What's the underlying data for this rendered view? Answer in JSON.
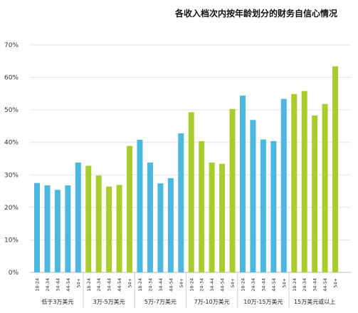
{
  "chart_data": {
    "type": "bar",
    "title": "各收入档次内按年龄划分的财务自信心情况",
    "ylim": [
      0,
      70
    ],
    "yticks": [
      "0%",
      "10%",
      "20%",
      "30%",
      "40%",
      "50%",
      "60%",
      "70%"
    ],
    "grid": true,
    "groups": [
      {
        "label": "低于3万美元",
        "color": "#4cb8e0",
        "ages": [
          "18-24",
          "24-34",
          "34-44",
          "44-54",
          "54+"
        ],
        "values": [
          27.5,
          26.8,
          25.4,
          26.8,
          33.8
        ]
      },
      {
        "label": "3万-5万美元",
        "color": "#a9cd2f",
        "ages": [
          "18-24",
          "24-34",
          "34-44",
          "44-54",
          "54+"
        ],
        "values": [
          32.8,
          29.8,
          26.4,
          26.9,
          38.9
        ]
      },
      {
        "label": "5万-7万美元",
        "color": "#4cb8e0",
        "ages": [
          "18-24",
          "24-34",
          "34-44",
          "44-54",
          "54+"
        ],
        "values": [
          40.8,
          33.8,
          27.4,
          29.0,
          42.8
        ]
      },
      {
        "label": "7万-10万美元",
        "color": "#a9cd2f",
        "ages": [
          "18-24",
          "24-34",
          "34-44",
          "44-54",
          "54+"
        ],
        "values": [
          49.3,
          40.4,
          33.8,
          33.4,
          50.3
        ]
      },
      {
        "label": "10万-15万美元",
        "color": "#4cb8e0",
        "ages": [
          "18-24",
          "24-34",
          "34-44",
          "44-54",
          "54+"
        ],
        "values": [
          54.4,
          46.9,
          40.9,
          40.4,
          53.4
        ]
      },
      {
        "label": "15万美元或以上",
        "color": "#a9cd2f",
        "ages": [
          "18-24",
          "24-34",
          "34-44",
          "44-54",
          "54+"
        ],
        "values": [
          54.9,
          55.8,
          48.3,
          51.8,
          63.4
        ]
      }
    ]
  }
}
